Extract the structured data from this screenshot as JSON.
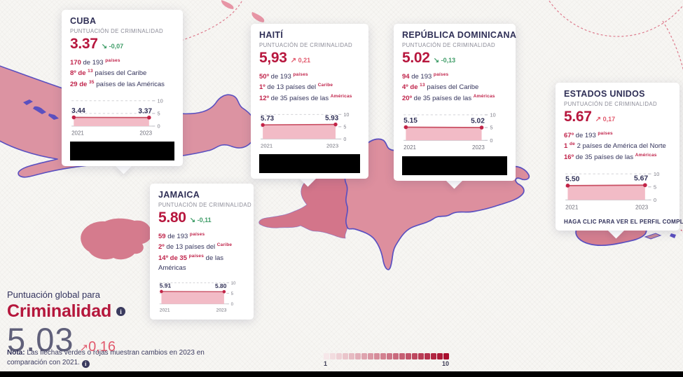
{
  "global": {
    "kicker": "Puntuación global para",
    "title": "Criminalidad",
    "score": "5.03",
    "change": "0,16",
    "change_dir": "up",
    "note_label": "Nota:",
    "note_text": " Las flechas verdes o rojas muestran cambios en 2023 en comparación con 2021. "
  },
  "cta_text": "HAGA CLIC PARA VER EL PERFIL COMPLETO",
  "legend": {
    "label_min": "1",
    "label_max": "10",
    "color_from": "#f6e7e9",
    "color_to": "#a90f2e",
    "steps": 20
  },
  "colors": {
    "score_red": "#b7173e",
    "change_up": "#e25a6d",
    "change_down": "#3f9d68",
    "country_border": "#5b50c0"
  },
  "cards": [
    {
      "id": "cuba",
      "title": "CUBA",
      "subtitle": "PUNTUACIÓN DE CRIMINALIDAD",
      "score": "3.37",
      "change": "-0,07",
      "change_dir": "down",
      "ranks": [
        [
          {
            "t": "170",
            "s": "r"
          },
          {
            "t": " de 193 ",
            "s": "n"
          },
          {
            "t": "países",
            "s": "s"
          }
        ],
        [
          {
            "t": "8º de",
            "s": "r"
          },
          {
            "t": " ",
            "s": "n"
          },
          {
            "t": "13",
            "s": "s"
          },
          {
            "t": " países del Caribe",
            "s": "n"
          }
        ],
        [
          {
            "t": "29 de",
            "s": "r"
          },
          {
            "t": " ",
            "s": "n"
          },
          {
            "t": "35",
            "s": "s"
          },
          {
            "t": " países de las Américas",
            "s": "n"
          }
        ]
      ],
      "chart": {
        "type": "area",
        "x": [
          "2021",
          "2023"
        ],
        "values": [
          3.44,
          3.37
        ],
        "value_labels": [
          "3.44",
          "3.37"
        ],
        "ylim": [
          0,
          10
        ],
        "yticks": [
          "0",
          "5",
          "10"
        ]
      },
      "footer": "redacted"
    },
    {
      "id": "haiti",
      "title": "HAITÍ",
      "subtitle": "PUNTUACIÓN DE CRIMINALIDAD",
      "score": "5,93",
      "change": "0,21",
      "change_dir": "up",
      "ranks": [
        [
          {
            "t": "50º",
            "s": "r"
          },
          {
            "t": " de 193 ",
            "s": "n"
          },
          {
            "t": "países",
            "s": "s"
          }
        ],
        [
          {
            "t": "1º",
            "s": "r"
          },
          {
            "t": " de 13 países del ",
            "s": "n"
          },
          {
            "t": "Caribe",
            "s": "s"
          }
        ],
        [
          {
            "t": "12º",
            "s": "r"
          },
          {
            "t": " de 35 países de las ",
            "s": "n"
          },
          {
            "t": "Américas",
            "s": "s"
          }
        ]
      ],
      "chart": {
        "type": "area",
        "x": [
          "2021",
          "2023"
        ],
        "values": [
          5.73,
          5.93
        ],
        "value_labels": [
          "5.73",
          "5.93"
        ],
        "ylim": [
          0,
          10
        ],
        "yticks": [
          "0",
          "5",
          "10"
        ]
      },
      "footer": "redacted"
    },
    {
      "id": "dominican_republic",
      "title": "REPÚBLICA DOMINICANA",
      "subtitle": "PUNTUACIÓN DE CRIMINALIDAD",
      "score": "5.02",
      "change": "-0,13",
      "change_dir": "down",
      "ranks": [
        [
          {
            "t": "94",
            "s": "r"
          },
          {
            "t": " de 193 ",
            "s": "n"
          },
          {
            "t": "países",
            "s": "s"
          }
        ],
        [
          {
            "t": "4º de",
            "s": "r"
          },
          {
            "t": " ",
            "s": "n"
          },
          {
            "t": "13",
            "s": "s"
          },
          {
            "t": " países del Caribe",
            "s": "n"
          }
        ],
        [
          {
            "t": "20º",
            "s": "r"
          },
          {
            "t": " de 35 países de las ",
            "s": "n"
          },
          {
            "t": "Américas",
            "s": "s"
          }
        ]
      ],
      "chart": {
        "type": "area",
        "x": [
          "2021",
          "2023"
        ],
        "values": [
          5.15,
          5.02
        ],
        "value_labels": [
          "5.15",
          "5.02"
        ],
        "ylim": [
          0,
          10
        ],
        "yticks": [
          "0",
          "5",
          "10"
        ]
      },
      "footer": "redacted"
    },
    {
      "id": "united_states",
      "title": "ESTADOS UNIDOS",
      "subtitle": "PUNTUACIÓN DE CRIMINALIDAD",
      "score": "5.67",
      "change": "0,17",
      "change_dir": "up",
      "ranks": [
        [
          {
            "t": "67º",
            "s": "r"
          },
          {
            "t": " de 193 ",
            "s": "n"
          },
          {
            "t": "países",
            "s": "s"
          }
        ],
        [
          {
            "t": "1",
            "s": "r"
          },
          {
            "t": " ",
            "s": "n"
          },
          {
            "t": "de",
            "s": "s"
          },
          {
            "t": " 2 países de América del Norte",
            "s": "n"
          }
        ],
        [
          {
            "t": "16º",
            "s": "r"
          },
          {
            "t": " de 35 países de las ",
            "s": "n"
          },
          {
            "t": "Américas",
            "s": "s"
          }
        ]
      ],
      "chart": {
        "type": "area",
        "x": [
          "2021",
          "2023"
        ],
        "values": [
          5.5,
          5.67
        ],
        "value_labels": [
          "5.50",
          "5.67"
        ],
        "ylim": [
          0,
          10
        ],
        "yticks": [
          "0",
          "5",
          "10"
        ]
      },
      "footer": "cta"
    },
    {
      "id": "jamaica",
      "title": "JAMAICA",
      "subtitle": "PUNTUACIÓN DE CRIMINALIDAD",
      "score": "5.80",
      "change": "-0,11",
      "change_dir": "down",
      "ranks": [
        [
          {
            "t": "59",
            "s": "r"
          },
          {
            "t": " de 193 ",
            "s": "n"
          },
          {
            "t": "países",
            "s": "s"
          }
        ],
        [
          {
            "t": "2º",
            "s": "r"
          },
          {
            "t": " de 13 países del ",
            "s": "n"
          },
          {
            "t": "Caribe",
            "s": "s"
          }
        ],
        [
          {
            "t": "14º de 35",
            "s": "r"
          },
          {
            "t": " ",
            "s": "n"
          },
          {
            "t": "países",
            "s": "s"
          },
          {
            "t": " de las Américas",
            "s": "n"
          }
        ]
      ],
      "chart": {
        "type": "area",
        "x": [
          "2021",
          "2023"
        ],
        "values": [
          5.91,
          5.8
        ],
        "value_labels": [
          "5.91",
          "5.80"
        ],
        "ylim": [
          0,
          10
        ],
        "yticks": [
          "0",
          "5",
          "10"
        ]
      },
      "footer": "none"
    }
  ]
}
